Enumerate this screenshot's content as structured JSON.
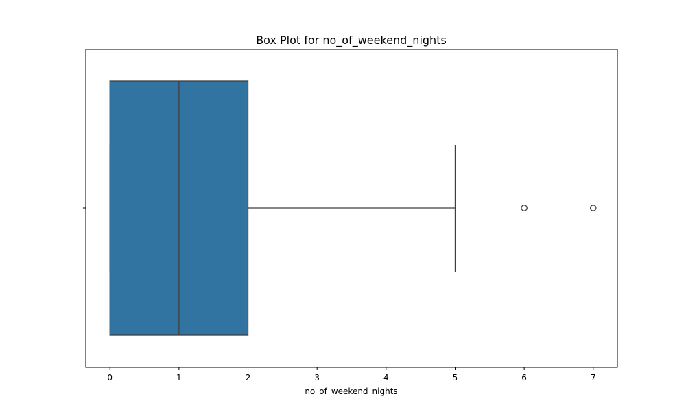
{
  "chart_data": {
    "type": "box",
    "title": "Box Plot for no_of_weekend_nights",
    "xlabel": "no_of_weekend_nights",
    "ylabel": "",
    "orientation": "horizontal",
    "xlim": [
      -0.35,
      7.35
    ],
    "x_ticks": [
      0,
      1,
      2,
      3,
      4,
      5,
      6,
      7
    ],
    "x_tick_labels": [
      "0",
      "1",
      "2",
      "3",
      "4",
      "5",
      "6",
      "7"
    ],
    "grid": false,
    "legend": "none",
    "box": {
      "whisker_low": 0,
      "q1": 0,
      "median": 1,
      "q3": 2,
      "whisker_high": 5,
      "outliers": [
        6,
        7
      ]
    },
    "colors": {
      "box_fill": "#3274a1",
      "line": "#3f3f3f"
    }
  }
}
